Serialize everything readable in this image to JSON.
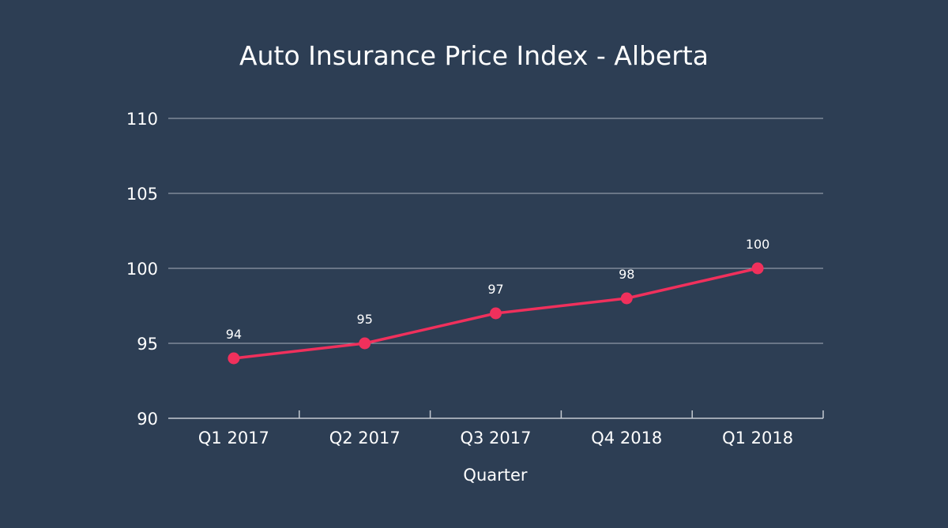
{
  "chart_data": {
    "type": "line",
    "title": "Auto Insurance Price Index - Alberta",
    "xlabel": "Quarter",
    "ylabel": "",
    "categories": [
      "Q1 2017",
      "Q2 2017",
      "Q3 2017",
      "Q4 2018",
      "Q1 2018"
    ],
    "series": [
      {
        "values": [
          94,
          95,
          97,
          98,
          100
        ],
        "color": "#f0305c"
      }
    ],
    "data_labels": [
      "94",
      "95",
      "97",
      "98",
      "100"
    ],
    "ylim": [
      90,
      110
    ],
    "y_ticks": [
      90,
      95,
      100,
      105,
      110
    ],
    "y_tick_labels": [
      "90",
      "95",
      "100",
      "105",
      "110"
    ],
    "grid": true,
    "legend": "none",
    "colors": {
      "background": "#2d3e54",
      "text": "#ffffff",
      "gridline": "#a7afba",
      "series": "#f0305c"
    }
  }
}
